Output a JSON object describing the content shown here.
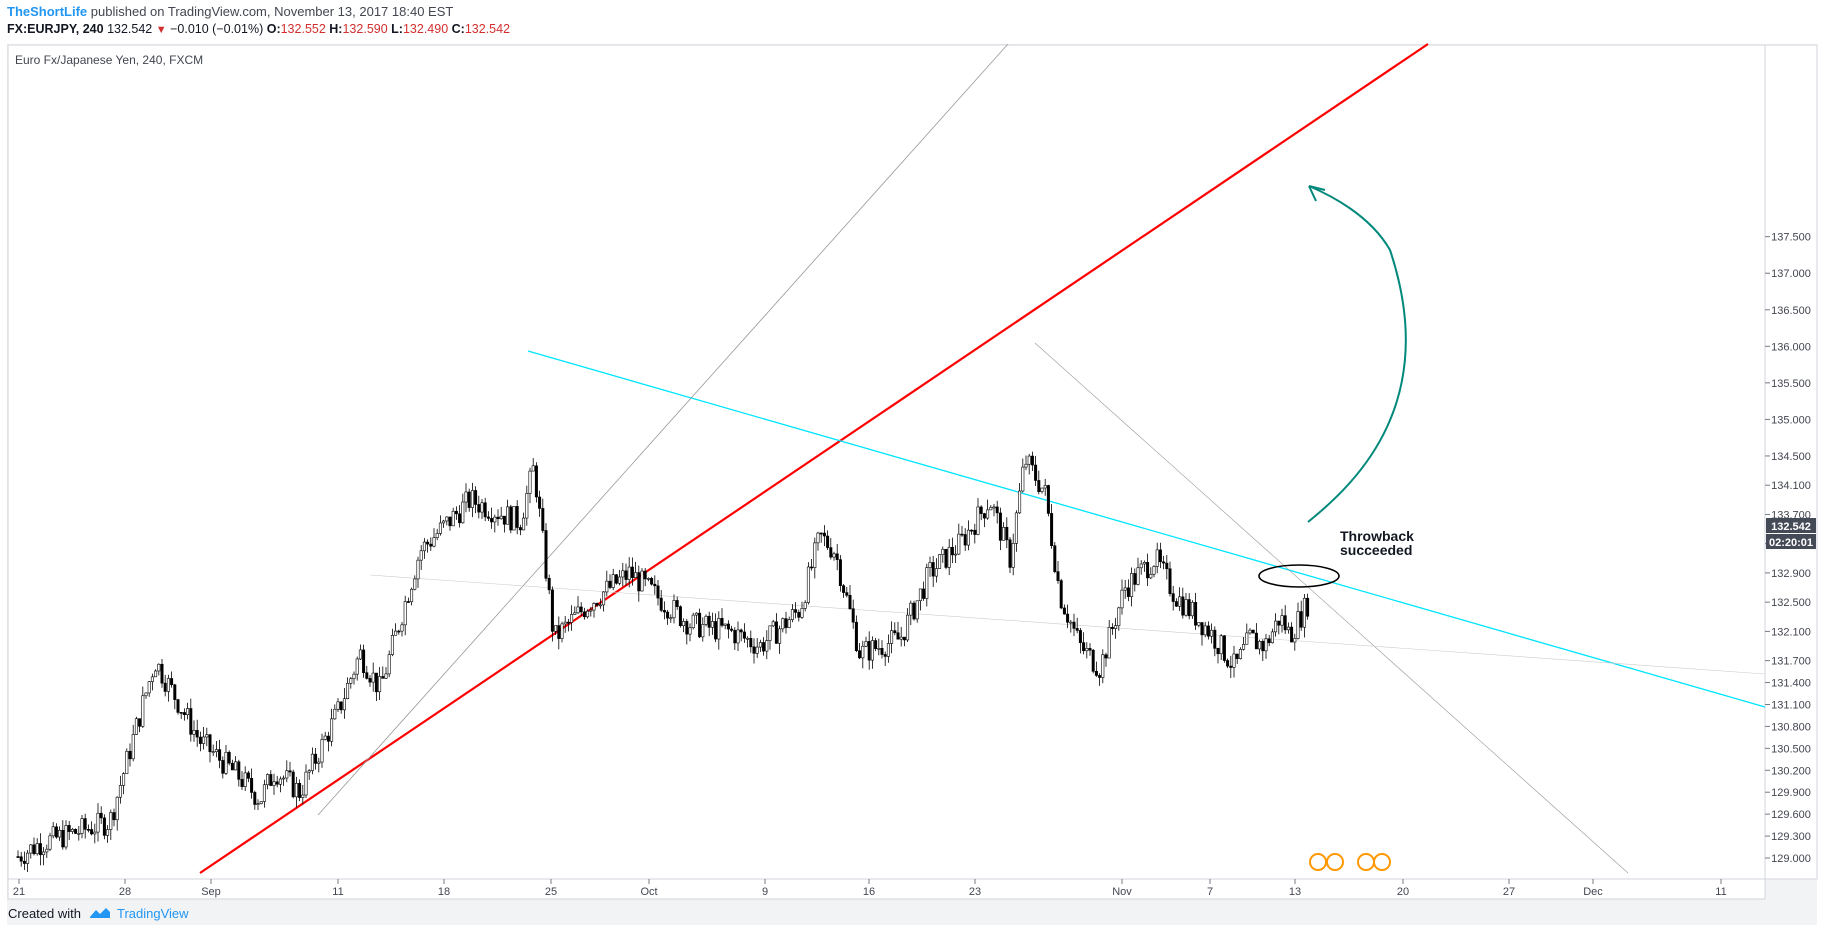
{
  "header": {
    "author": "TheShortLife",
    "published": " published on TradingView.com, November 13, 2017 18:40 EST",
    "symbol": "FX:EURJPY, 240",
    "last": "132.542",
    "change": "−0.010 (−0.01%)",
    "o_label": "O:",
    "o": "132.552",
    "h_label": "H:",
    "h": "132.590",
    "l_label": "L:",
    "l": "132.490",
    "c_label": "C:",
    "c": "132.542"
  },
  "footer": {
    "created_with": "Created with",
    "brand": "TradingView"
  },
  "chart_data": {
    "type": "line",
    "title": "Euro Fx/Japanese Yen, 240, FXCM",
    "x_tick_labels": [
      "21",
      "28",
      "Sep",
      "11",
      "18",
      "25",
      "Oct",
      "9",
      "16",
      "23",
      "Nov",
      "7",
      "13",
      "20",
      "27",
      "Dec",
      "11"
    ],
    "y_tick_labels": [
      "137.500",
      "137.000",
      "136.500",
      "136.000",
      "135.500",
      "135.000",
      "134.500",
      "134.100",
      "133.700",
      "133.300",
      "132.900",
      "132.500",
      "132.100",
      "131.700",
      "131.400",
      "131.100",
      "130.800",
      "130.500",
      "130.200",
      "129.900",
      "129.600",
      "129.300",
      "129.000"
    ],
    "ylim": [
      128.9,
      137.75
    ],
    "last_price_label": "132.542",
    "countdown_label": "02:20:01",
    "x": [
      "Aug 21",
      "Aug 24",
      "Aug 28",
      "Aug 31",
      "Sep 4",
      "Sep 6",
      "Sep 7",
      "Sep 8",
      "Sep 11",
      "Sep 13",
      "Sep 14",
      "Sep 15",
      "Sep 18",
      "Sep 20",
      "Sep 21",
      "Sep 22",
      "Sep 25",
      "Sep 27",
      "Sep 29",
      "Oct 2",
      "Oct 4",
      "Oct 6",
      "Oct 9",
      "Oct 11",
      "Oct 12",
      "Oct 13",
      "Oct 16",
      "Oct 18",
      "Oct 19",
      "Oct 20",
      "Oct 23",
      "Oct 24",
      "Oct 25",
      "Oct 26",
      "Oct 27",
      "Oct 30",
      "Oct 31",
      "Nov 1",
      "Nov 2",
      "Nov 3",
      "Nov 6",
      "Nov 7",
      "Nov 8",
      "Nov 9",
      "Nov 10",
      "Nov 13",
      "Nov 14"
    ],
    "series": [
      {
        "values": [
          129.02,
          129.2,
          129.5,
          131.7,
          130.6,
          130.1,
          129.8,
          130.2,
          129.9,
          131.0,
          131.8,
          131.3,
          133.2,
          133.9,
          133.6,
          134.35,
          132.0,
          132.5,
          132.9,
          132.6,
          132.2,
          132.1,
          131.9,
          132.4,
          133.4,
          133.2,
          131.8,
          132.0,
          132.9,
          133.3,
          133.9,
          133.1,
          134.45,
          134.0,
          132.6,
          131.9,
          131.6,
          132.7,
          133.1,
          132.6,
          132.1,
          131.6,
          132.0,
          131.9,
          132.3,
          132.05,
          132.54
        ]
      }
    ],
    "trendlines": [
      {
        "color": "#ff0000"
      },
      {
        "color": "#00e5ff"
      },
      {
        "color": "#999999"
      },
      {
        "color": "#999999"
      },
      {
        "color": "#cccccc"
      }
    ],
    "annotations": [
      {
        "text": "Throwback\nsucceeded",
        "line1": "Throwback",
        "line2": "succeeded"
      }
    ],
    "colors": {
      "red_line": "#ff0000",
      "cyan_line": "#00e5ff",
      "arrow": "#00897b",
      "last_price_bg": "#454a57",
      "timer_bg": "#454a57"
    }
  }
}
